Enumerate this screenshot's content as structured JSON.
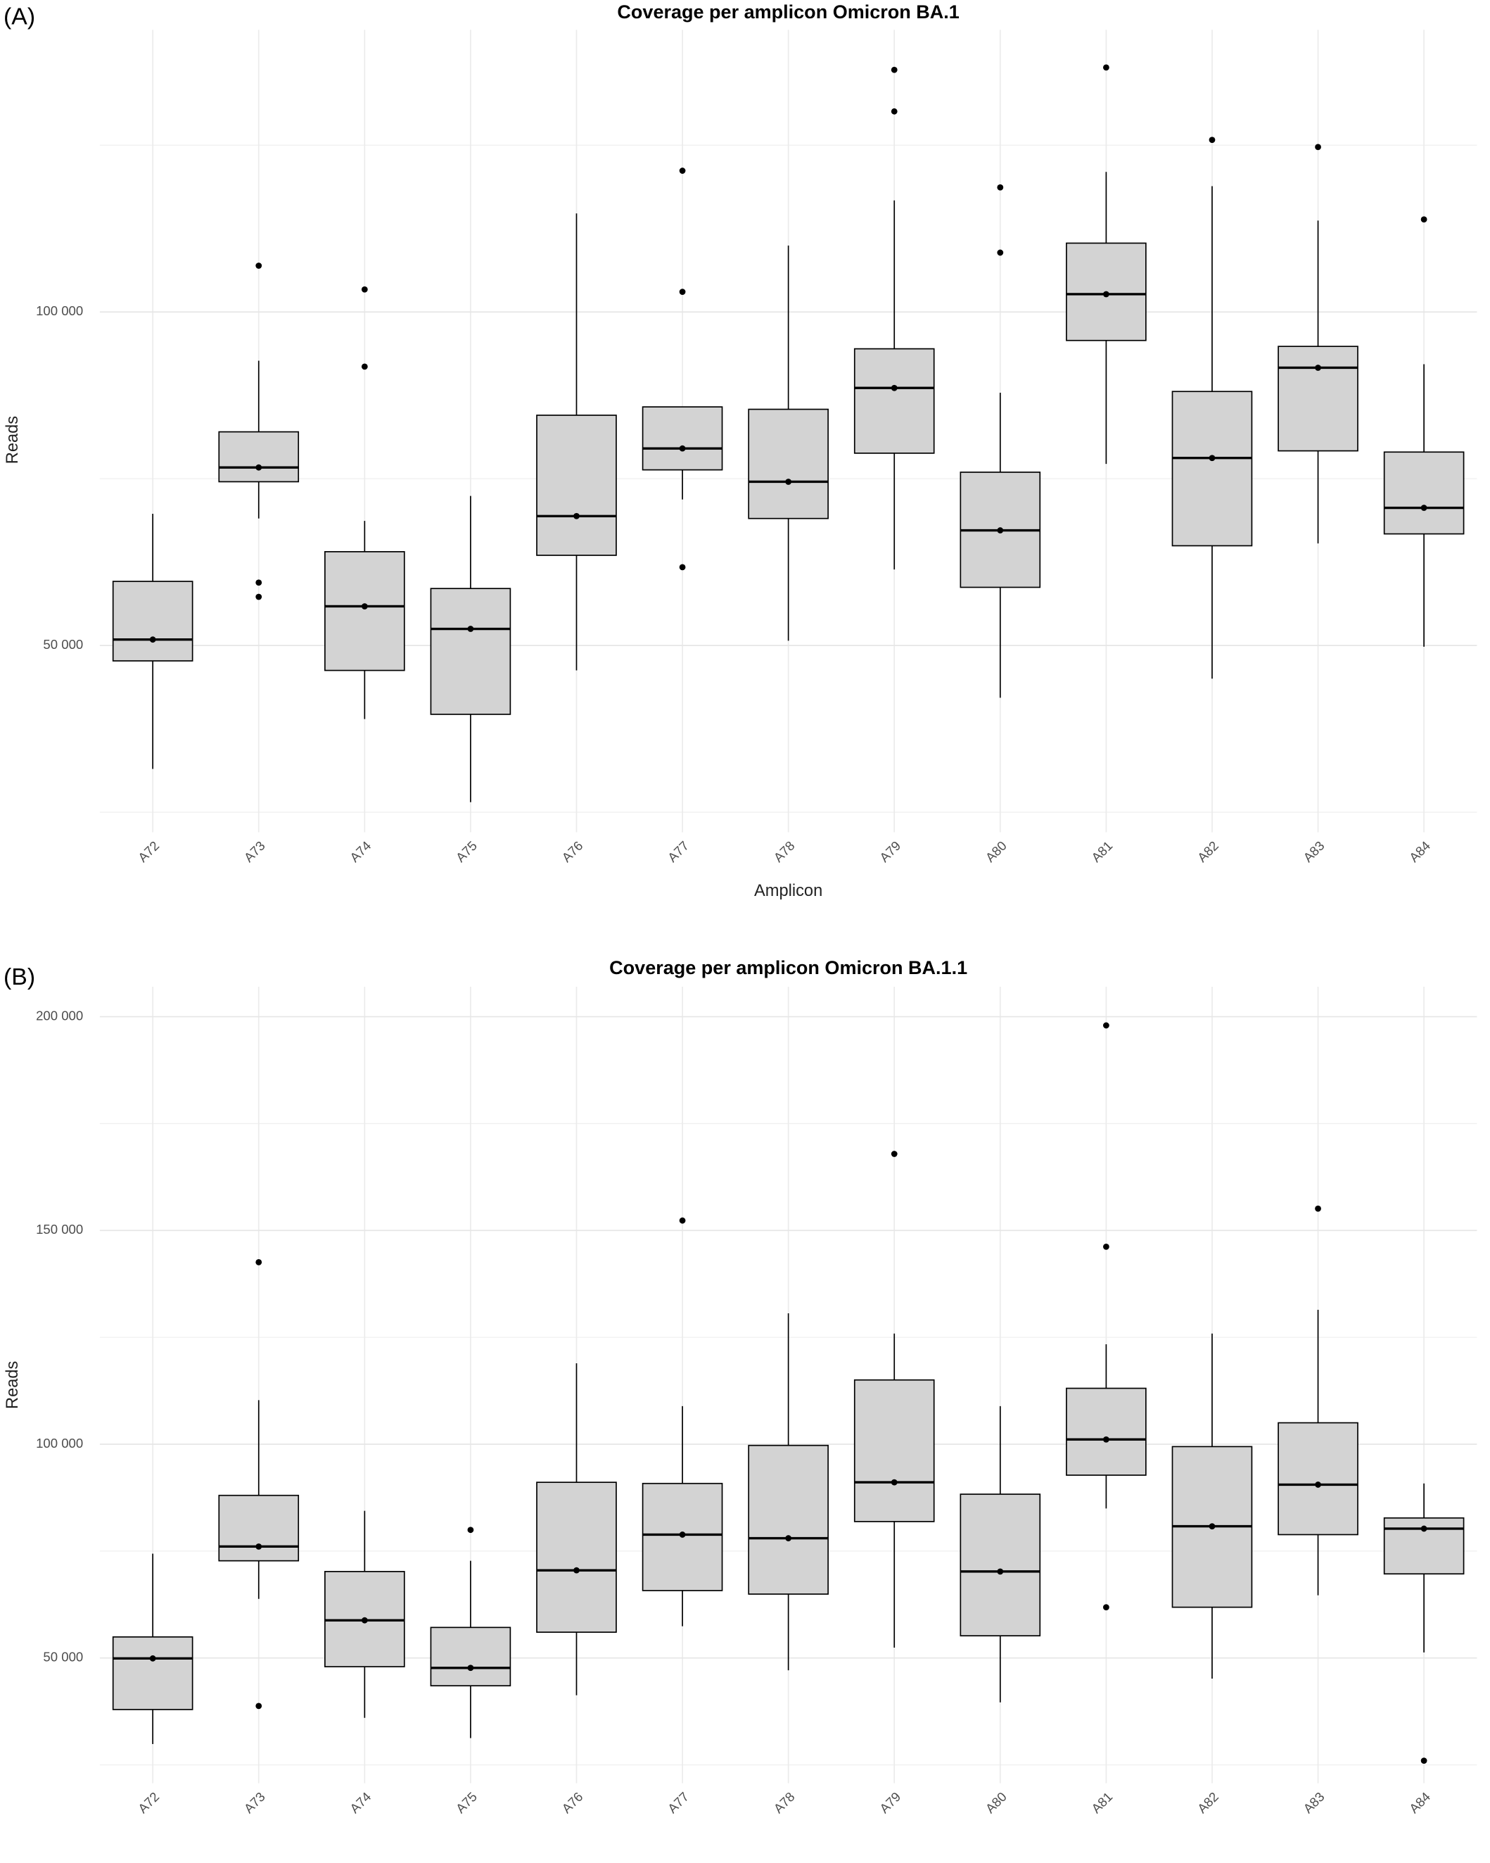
{
  "chart_data": [
    {
      "type": "box",
      "panel_label": "(A)",
      "title": "Coverage per amplicon Omicron BA.1",
      "x_label": "Amplicon",
      "y_label": "Reads",
      "categories": [
        "A72",
        "A73",
        "A74",
        "A75",
        "A76",
        "A77",
        "A78",
        "A79",
        "A80",
        "A81",
        "A82",
        "A83",
        "A84"
      ],
      "fill": "#d3d3d3",
      "grid": true,
      "ylim": [
        22000,
        142300
      ],
      "yticks": [
        {
          "value": 50000,
          "label": "50 000"
        },
        {
          "value": 100000,
          "label": "100 000"
        }
      ],
      "minor_yticks": [
        25000,
        75000,
        125000
      ],
      "boxes": [
        {
          "whisker_low": 31490,
          "q1": 47690,
          "median": 50890,
          "q3": 59610,
          "whisker_high": 69750,
          "outliers": []
        },
        {
          "whisker_low": 69040,
          "q1": 74550,
          "median": 76690,
          "q3": 82030,
          "whisker_high": 92700,
          "outliers": [
            106940,
            59430,
            57290
          ]
        },
        {
          "whisker_low": 38970,
          "q1": 46260,
          "median": 55870,
          "q3": 64060,
          "whisker_high": 68680,
          "outliers": [
            103380,
            91810
          ]
        },
        {
          "whisker_low": 26510,
          "q1": 39680,
          "median": 52490,
          "q3": 58540,
          "whisker_high": 72420,
          "outliers": []
        },
        {
          "whisker_low": 46260,
          "q1": 63520,
          "median": 69400,
          "q3": 84520,
          "whisker_high": 114770,
          "outliers": []
        },
        {
          "whisker_low": 71890,
          "q1": 76330,
          "median": 79540,
          "q3": 85770,
          "whisker_high": 85770,
          "outliers": [
            121180,
            103020,
            61740
          ]
        },
        {
          "whisker_low": 50710,
          "q1": 69040,
          "median": 74550,
          "q3": 85410,
          "whisker_high": 109960,
          "outliers": []
        },
        {
          "whisker_low": 61390,
          "q1": 78830,
          "median": 88610,
          "q3": 94480,
          "whisker_high": 116730,
          "outliers": [
            136300,
            130070
          ]
        },
        {
          "whisker_low": 42170,
          "q1": 58720,
          "median": 67260,
          "q3": 75980,
          "whisker_high": 87900,
          "outliers": [
            118680,
            108900
          ]
        },
        {
          "whisker_low": 77220,
          "q1": 95730,
          "median": 102670,
          "q3": 110320,
          "whisker_high": 121000,
          "outliers": [
            136660
          ]
        },
        {
          "whisker_low": 45020,
          "q1": 64950,
          "median": 78110,
          "q3": 88080,
          "whisker_high": 118860,
          "outliers": [
            125800
          ]
        },
        {
          "whisker_low": 65300,
          "q1": 79180,
          "median": 91640,
          "q3": 94840,
          "whisker_high": 113700,
          "outliers": [
            124730
          ]
        },
        {
          "whisker_low": 49820,
          "q1": 66730,
          "median": 70640,
          "q3": 79000,
          "whisker_high": 92170,
          "outliers": [
            113880
          ]
        }
      ]
    },
    {
      "type": "box",
      "panel_label": "(B)",
      "title": "Coverage per amplicon Omicron BA.1.1",
      "x_label": "Amplicon",
      "y_label": "Reads",
      "categories": [
        "A72",
        "A73",
        "A74",
        "A75",
        "A76",
        "A77",
        "A78",
        "A79",
        "A80",
        "A81",
        "A82",
        "A83",
        "A84"
      ],
      "fill": "#d3d3d3",
      "grid": true,
      "ylim": [
        20700,
        207000
      ],
      "yticks": [
        {
          "value": 50000,
          "label": "50 000"
        },
        {
          "value": 100000,
          "label": "100 000"
        },
        {
          "value": 150000,
          "label": "150 000"
        },
        {
          "value": 200000,
          "label": "200 000"
        }
      ],
      "minor_yticks": [
        25000,
        75000,
        125000,
        175000
      ],
      "boxes": [
        {
          "whisker_low": 29870,
          "q1": 37940,
          "median": 49900,
          "q3": 54920,
          "whisker_high": 74400,
          "outliers": []
        },
        {
          "whisker_low": 63820,
          "q1": 72730,
          "median": 76070,
          "q3": 88030,
          "whisker_high": 110300,
          "outliers": [
            142580,
            38770
          ]
        },
        {
          "whisker_low": 35990,
          "q1": 47960,
          "median": 58810,
          "q3": 70220,
          "whisker_high": 84420,
          "outliers": []
        },
        {
          "whisker_low": 31260,
          "q1": 43500,
          "median": 47680,
          "q3": 57140,
          "whisker_high": 72730,
          "outliers": [
            79960
          ]
        },
        {
          "whisker_low": 41280,
          "q1": 56030,
          "median": 70500,
          "q3": 91090,
          "whisker_high": 118920,
          "outliers": []
        },
        {
          "whisker_low": 57420,
          "q1": 65770,
          "median": 78850,
          "q3": 90820,
          "whisker_high": 108910,
          "outliers": [
            152320
          ]
        },
        {
          "whisker_low": 47120,
          "q1": 64940,
          "median": 78010,
          "q3": 99720,
          "whisker_high": 130610,
          "outliers": []
        },
        {
          "whisker_low": 52410,
          "q1": 81910,
          "median": 91090,
          "q3": 115030,
          "whisker_high": 125880,
          "outliers": [
            167910
          ]
        },
        {
          "whisker_low": 39610,
          "q1": 55190,
          "median": 70220,
          "q3": 88310,
          "whisker_high": 108910,
          "outliers": []
        },
        {
          "whisker_low": 84970,
          "q1": 92760,
          "median": 101110,
          "q3": 113080,
          "whisker_high": 123380,
          "outliers": [
            197960,
            146200,
            61870
          ]
        },
        {
          "whisker_low": 45170,
          "q1": 61870,
          "median": 80800,
          "q3": 99440,
          "whisker_high": 125880,
          "outliers": []
        },
        {
          "whisker_low": 64660,
          "q1": 78850,
          "median": 90540,
          "q3": 105010,
          "whisker_high": 131450,
          "outliers": [
            155100
          ]
        },
        {
          "whisker_low": 51300,
          "q1": 69670,
          "median": 80250,
          "q3": 82750,
          "whisker_high": 90820,
          "outliers": [
            25970
          ]
        }
      ]
    }
  ]
}
